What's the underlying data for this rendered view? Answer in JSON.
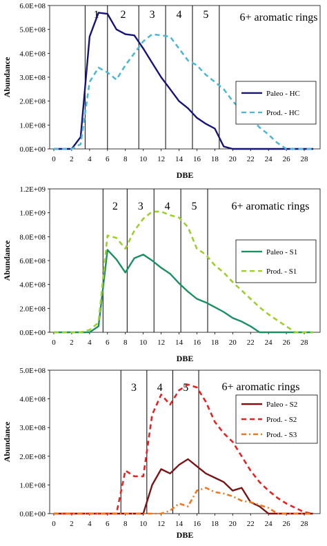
{
  "chart_data": [
    {
      "type": "line",
      "xlabel": "DBE",
      "ylabel": "Abundance",
      "xticks": [
        "0",
        "2",
        "4",
        "6",
        "8",
        "10",
        "12",
        "14",
        "16",
        "18",
        "20",
        "22",
        "24",
        "26",
        "28"
      ],
      "yticks": [
        "0.0E+00",
        "1.0E+08",
        "2.0E+08",
        "3.0E+08",
        "4.0E+08",
        "5.0E+08",
        "6.0E+08"
      ],
      "xlim": [
        0,
        29
      ],
      "ylim": [
        0,
        600000000
      ],
      "grid": false,
      "legend_position": "right",
      "divider_dbe": [
        3.5,
        6,
        9.5,
        12.5,
        15.5,
        18.5
      ],
      "region_labels": [
        "1",
        "2",
        "3",
        "4",
        "5"
      ],
      "region_note": "6+ aromatic rings",
      "series": [
        {
          "name": "Paleo -  HC",
          "color": "#14137a",
          "dash": "solid",
          "x": [
            0,
            1,
            2,
            3,
            4,
            5,
            6,
            7,
            8,
            9,
            10,
            11,
            12,
            13,
            14,
            15,
            16,
            17,
            18,
            19,
            20,
            21,
            22,
            23,
            24,
            25,
            26,
            27,
            28,
            29
          ],
          "y": [
            0,
            0,
            0,
            50000000,
            470000000,
            570000000,
            565000000,
            500000000,
            480000000,
            475000000,
            420000000,
            360000000,
            300000000,
            250000000,
            200000000,
            170000000,
            130000000,
            105000000,
            85000000,
            10000000,
            0,
            0,
            0,
            0,
            0,
            0,
            0,
            0,
            0,
            0
          ]
        },
        {
          "name": "Prod. -  HC",
          "color": "#4eb8d4",
          "dash": "dashed",
          "x": [
            0,
            1,
            2,
            3,
            4,
            5,
            6,
            7,
            8,
            9,
            10,
            11,
            12,
            13,
            14,
            15,
            16,
            17,
            18,
            19,
            20,
            21,
            22,
            23,
            24,
            25,
            26,
            27,
            28,
            29
          ],
          "y": [
            0,
            0,
            0,
            20000000,
            280000000,
            340000000,
            320000000,
            290000000,
            350000000,
            400000000,
            450000000,
            480000000,
            475000000,
            470000000,
            420000000,
            370000000,
            350000000,
            310000000,
            280000000,
            250000000,
            200000000,
            160000000,
            130000000,
            90000000,
            60000000,
            25000000,
            0,
            0,
            0,
            0
          ]
        }
      ]
    },
    {
      "type": "line",
      "xlabel": "DBE",
      "ylabel": "Abundance",
      "xticks": [
        "0",
        "2",
        "4",
        "6",
        "8",
        "10",
        "12",
        "14",
        "16",
        "18",
        "20",
        "22",
        "24",
        "26",
        "28"
      ],
      "yticks": [
        "0.0E+00",
        "2.0E+08",
        "4.0E+08",
        "6.0E+08",
        "8.0E+08",
        "1.0E+09",
        "1.2E+09"
      ],
      "xlim": [
        0,
        29
      ],
      "ylim": [
        0,
        1200000000
      ],
      "grid": false,
      "legend_position": "right",
      "divider_dbe": [
        5.5,
        8.2,
        11.2,
        14.2,
        17.2
      ],
      "region_labels": [
        "2",
        "3",
        "4",
        "5"
      ],
      "region_note": "6+ aromatic rings",
      "series": [
        {
          "name": "Paleo -  S1",
          "color": "#1a8f62",
          "dash": "solid",
          "x": [
            0,
            1,
            2,
            3,
            4,
            5,
            6,
            7,
            8,
            9,
            10,
            11,
            12,
            13,
            14,
            15,
            16,
            17,
            18,
            19,
            20,
            21,
            22,
            23,
            24,
            25,
            26,
            27,
            28,
            29
          ],
          "y": [
            0,
            0,
            0,
            0,
            0,
            50000000,
            690000000,
            610000000,
            500000000,
            620000000,
            650000000,
            600000000,
            540000000,
            490000000,
            410000000,
            340000000,
            280000000,
            250000000,
            210000000,
            170000000,
            120000000,
            90000000,
            50000000,
            0,
            0,
            0,
            0,
            0,
            0,
            0
          ]
        },
        {
          "name": "Prod. -  S1",
          "color": "#9ccf2c",
          "dash": "dashed",
          "x": [
            0,
            1,
            2,
            3,
            4,
            5,
            6,
            7,
            8,
            9,
            10,
            11,
            12,
            13,
            14,
            15,
            16,
            17,
            18,
            19,
            20,
            21,
            22,
            23,
            24,
            25,
            26,
            27,
            28,
            29
          ],
          "y": [
            0,
            0,
            0,
            0,
            20000000,
            80000000,
            810000000,
            790000000,
            700000000,
            850000000,
            950000000,
            1010000000,
            1010000000,
            980000000,
            960000000,
            880000000,
            700000000,
            650000000,
            560000000,
            500000000,
            420000000,
            350000000,
            280000000,
            210000000,
            150000000,
            100000000,
            50000000,
            0,
            0,
            0
          ]
        }
      ]
    },
    {
      "type": "line",
      "xlabel": "DBE",
      "ylabel": "Abundance",
      "xticks": [
        "0",
        "2",
        "4",
        "6",
        "8",
        "10",
        "12",
        "14",
        "16",
        "18",
        "20",
        "22",
        "24",
        "26",
        "28"
      ],
      "yticks": [
        "0.0E+00",
        "1.0E+08",
        "2.0E+08",
        "3.0E+08",
        "4.0E+08",
        "5.0E+08"
      ],
      "xlim": [
        0,
        29
      ],
      "ylim": [
        0,
        500000000
      ],
      "grid": false,
      "legend_position": "right",
      "divider_dbe": [
        7.5,
        10.4,
        13.3,
        16.2
      ],
      "region_labels": [
        "3",
        "4",
        "5"
      ],
      "region_note": "6+ aromatic rings",
      "series": [
        {
          "name": "Paleo -  S2",
          "color": "#7a1414",
          "dash": "solid",
          "x": [
            0,
            1,
            2,
            3,
            4,
            5,
            6,
            7,
            8,
            9,
            10,
            11,
            12,
            13,
            14,
            15,
            16,
            17,
            18,
            19,
            20,
            21,
            22,
            23,
            24,
            25,
            26,
            27,
            28,
            29
          ],
          "y": [
            0,
            0,
            0,
            0,
            0,
            0,
            0,
            0,
            0,
            0,
            0,
            100000000,
            155000000,
            140000000,
            170000000,
            190000000,
            165000000,
            140000000,
            125000000,
            110000000,
            80000000,
            90000000,
            40000000,
            25000000,
            0,
            0,
            0,
            0,
            0,
            0
          ]
        },
        {
          "name": "Prod. -  S2",
          "color": "#e52222",
          "dash": "dashed",
          "x": [
            0,
            1,
            2,
            3,
            4,
            5,
            6,
            7,
            8,
            9,
            10,
            11,
            12,
            13,
            14,
            15,
            16,
            17,
            18,
            19,
            20,
            21,
            22,
            23,
            24,
            25,
            26,
            27,
            28,
            29
          ],
          "y": [
            0,
            0,
            0,
            0,
            0,
            0,
            0,
            0,
            150000000,
            130000000,
            130000000,
            345000000,
            415000000,
            380000000,
            430000000,
            450000000,
            440000000,
            390000000,
            320000000,
            280000000,
            250000000,
            200000000,
            150000000,
            110000000,
            80000000,
            55000000,
            35000000,
            20000000,
            5000000,
            0
          ]
        },
        {
          "name": "Prod. -  S3",
          "color": "#ee7722",
          "dash": "dashdot",
          "x": [
            0,
            1,
            2,
            3,
            4,
            5,
            6,
            7,
            8,
            9,
            10,
            11,
            12,
            13,
            14,
            15,
            16,
            17,
            18,
            19,
            20,
            21,
            22,
            23,
            24,
            25,
            26,
            27,
            28,
            29
          ],
          "y": [
            0,
            0,
            0,
            0,
            0,
            0,
            0,
            0,
            0,
            0,
            0,
            0,
            0,
            10000000,
            35000000,
            25000000,
            80000000,
            90000000,
            75000000,
            70000000,
            60000000,
            45000000,
            40000000,
            30000000,
            20000000,
            0,
            0,
            0,
            0,
            0
          ]
        }
      ]
    }
  ]
}
